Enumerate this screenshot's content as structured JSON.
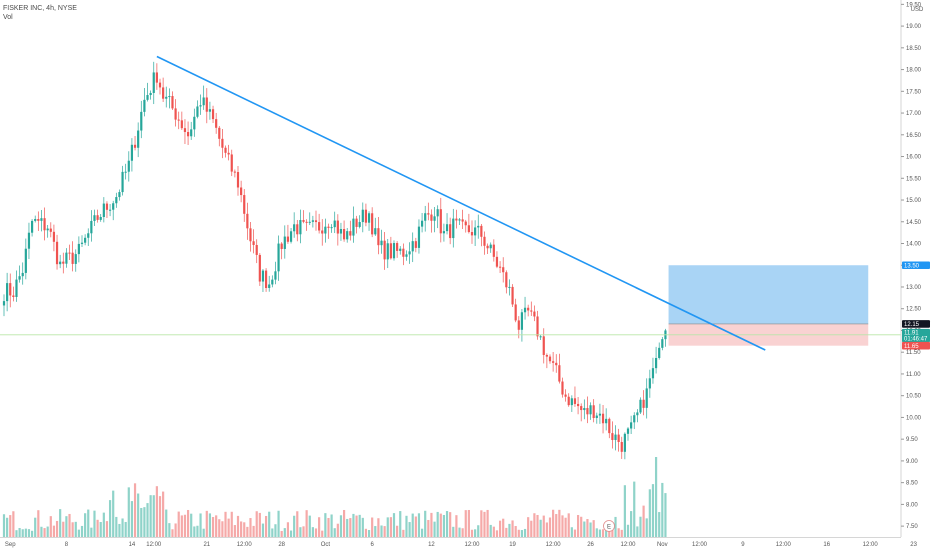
{
  "header": {
    "title": "FISKER INC, 4h, NYSE",
    "vol_label": "Vol"
  },
  "currency": "USD",
  "chart_data": {
    "type": "candlestick",
    "title": "FISKER INC, 4h, NYSE",
    "ylim": [
      7.25,
      19.6
    ],
    "y_ticks": [
      "7.50",
      "8.00",
      "8.50",
      "9.00",
      "9.50",
      "10.00",
      "10.50",
      "11.00",
      "11.50",
      "12.00",
      "12.50",
      "13.00",
      "13.50",
      "14.00",
      "14.50",
      "15.00",
      "15.50",
      "16.00",
      "16.50",
      "17.00",
      "17.50",
      "18.00",
      "18.50",
      "19.00",
      "19.50"
    ],
    "x_ticks": [
      "Sep",
      "8",
      "14",
      "12:00",
      "21",
      "12:00",
      "28",
      "Oct",
      "6",
      "12",
      "12:00",
      "19",
      "12:00",
      "26",
      "12:00",
      "Nov",
      "12:00",
      "9",
      "12:00",
      "16",
      "12:00",
      "23"
    ],
    "anchors": [
      [
        0,
        12.9
      ],
      [
        3,
        12.9
      ],
      [
        6,
        13.4
      ],
      [
        9,
        14.5
      ],
      [
        14,
        14.4
      ],
      [
        18,
        13.5
      ],
      [
        24,
        13.8
      ],
      [
        30,
        14.6
      ],
      [
        36,
        15.1
      ],
      [
        40,
        15.8
      ],
      [
        45,
        17.3
      ],
      [
        49,
        17.9
      ],
      [
        51,
        17.4
      ],
      [
        55,
        17.0
      ],
      [
        59,
        16.5
      ],
      [
        63,
        17.3
      ],
      [
        67,
        16.8
      ],
      [
        71,
        16.0
      ],
      [
        75,
        15.4
      ],
      [
        79,
        14.1
      ],
      [
        82,
        13.3
      ],
      [
        85,
        13.1
      ],
      [
        89,
        14.0
      ],
      [
        93,
        14.4
      ],
      [
        97,
        14.3
      ],
      [
        101,
        14.4
      ],
      [
        105,
        14.6
      ],
      [
        109,
        14.1
      ],
      [
        113,
        14.5
      ],
      [
        117,
        14.7
      ],
      [
        120,
        13.9
      ],
      [
        124,
        13.8
      ],
      [
        128,
        13.8
      ],
      [
        132,
        14.1
      ],
      [
        135,
        14.6
      ],
      [
        138,
        14.8
      ],
      [
        141,
        14.2
      ],
      [
        144,
        14.4
      ],
      [
        147,
        14.3
      ],
      [
        150,
        14.3
      ],
      [
        153,
        14.2
      ],
      [
        156,
        13.8
      ],
      [
        159,
        13.4
      ],
      [
        162,
        12.9
      ],
      [
        165,
        12.1
      ],
      [
        168,
        12.4
      ],
      [
        171,
        12.0
      ],
      [
        174,
        11.4
      ],
      [
        177,
        11.0
      ],
      [
        180,
        10.5
      ],
      [
        183,
        10.3
      ],
      [
        186,
        10.1
      ],
      [
        189,
        10.2
      ],
      [
        192,
        10.0
      ],
      [
        195,
        9.6
      ],
      [
        198,
        9.4
      ],
      [
        201,
        9.7
      ],
      [
        204,
        10.2
      ],
      [
        207,
        10.9
      ],
      [
        210,
        11.6
      ],
      [
        212,
        12.0
      ]
    ],
    "candle_count": 213,
    "volume_scale": "relative",
    "trendline": {
      "from": [
        49,
        18.3
      ],
      "to": [
        244,
        11.55
      ]
    },
    "horizontal_line": 11.9,
    "long_position": {
      "target": 13.5,
      "entry": 12.15,
      "stop": 11.65,
      "start": 213,
      "end": 277
    },
    "price_tags": [
      {
        "value": "13.50",
        "price": 13.5,
        "color": "#2196f3"
      },
      {
        "value": "12.15",
        "price": 12.15,
        "color": "#131722"
      },
      {
        "value": "11.91",
        "price": 11.95,
        "color": "#26a69a"
      },
      {
        "value": "01:46:47",
        "price": 11.82,
        "color": "#26a69a"
      },
      {
        "value": "11.65",
        "price": 11.65,
        "color": "#ef5350"
      }
    ],
    "colors": {
      "up": "#26a69a",
      "down": "#ef5350",
      "trend": "#2196f3",
      "target_zone": "#a9d4f5",
      "stop_zone": "#f9d2d2",
      "hline": "#b9e6a8"
    },
    "event_marker": "E"
  }
}
